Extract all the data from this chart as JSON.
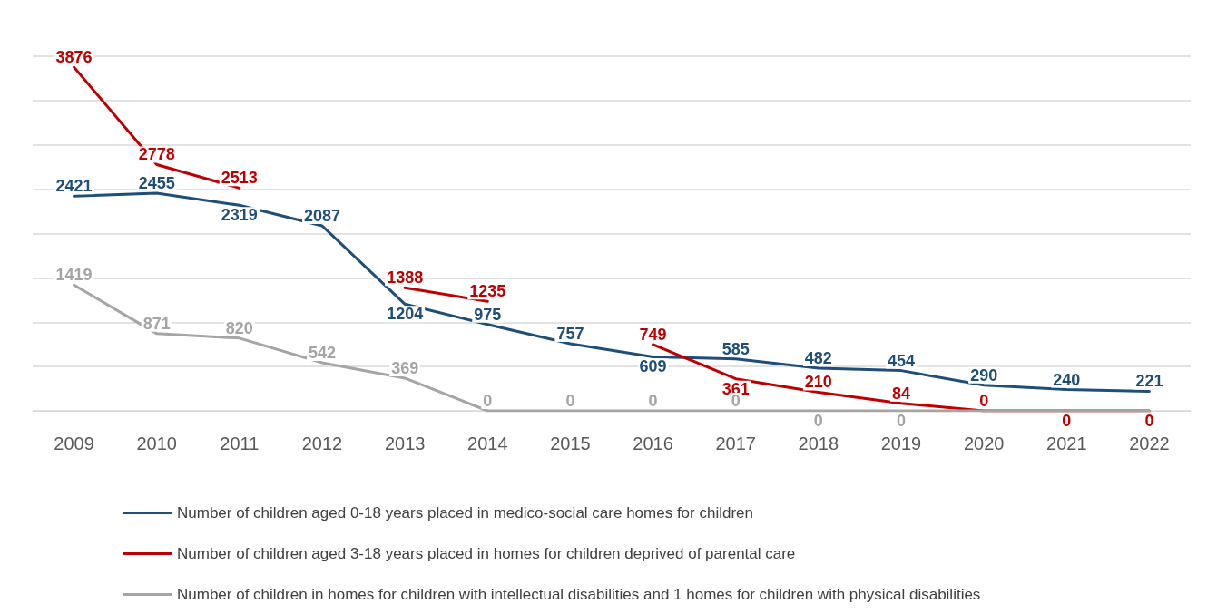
{
  "chart_data": {
    "type": "line",
    "categories": [
      "2009",
      "2010",
      "2011",
      "2012",
      "2013",
      "2014",
      "2015",
      "2016",
      "2017",
      "2018",
      "2019",
      "2020",
      "2021",
      "2022"
    ],
    "series": [
      {
        "name": "Number of children aged 0-18 years placed in medico-social care homes for children",
        "color": "#1f4e79",
        "values": [
          2421,
          2455,
          2319,
          2087,
          1204,
          975,
          757,
          609,
          585,
          482,
          454,
          290,
          240,
          221
        ]
      },
      {
        "name": "Number of children aged 3-18 years placed in homes for children deprived of parental care",
        "color": "#c00000",
        "values": [
          3876,
          2778,
          2513,
          null,
          1388,
          1235,
          null,
          749,
          361,
          210,
          84,
          0,
          0,
          0
        ]
      },
      {
        "name": "Number of children in homes for children with intellectual disabilities and 1 homes for children with physical disabilities",
        "color": "#a5a5a5",
        "values": [
          1419,
          871,
          820,
          542,
          369,
          0,
          0,
          0,
          0,
          0,
          0,
          0,
          0,
          0
        ],
        "value_labels": [
          "1419",
          "871",
          "820",
          "542",
          "369",
          "0",
          "0",
          "0",
          "0",
          "0",
          "0",
          null,
          null,
          null
        ]
      }
    ],
    "ylim": [
      0,
      4000
    ],
    "yticks": [
      {
        "value": 0,
        "label": null
      },
      {
        "value": 500,
        "label": null
      },
      {
        "value": 1000,
        "label": null
      },
      {
        "value": 1500,
        "label": null
      },
      {
        "value": 2000,
        "label": null
      },
      {
        "value": 2500,
        "label": null
      },
      {
        "value": 3000,
        "label": null
      },
      {
        "value": 3500,
        "label": null
      },
      {
        "value": 4000,
        "label": null
      }
    ],
    "tick_labels": "x",
    "grid": "y",
    "legend": "bottom",
    "marker": "none",
    "line_style": "solid",
    "data_labels": true
  }
}
